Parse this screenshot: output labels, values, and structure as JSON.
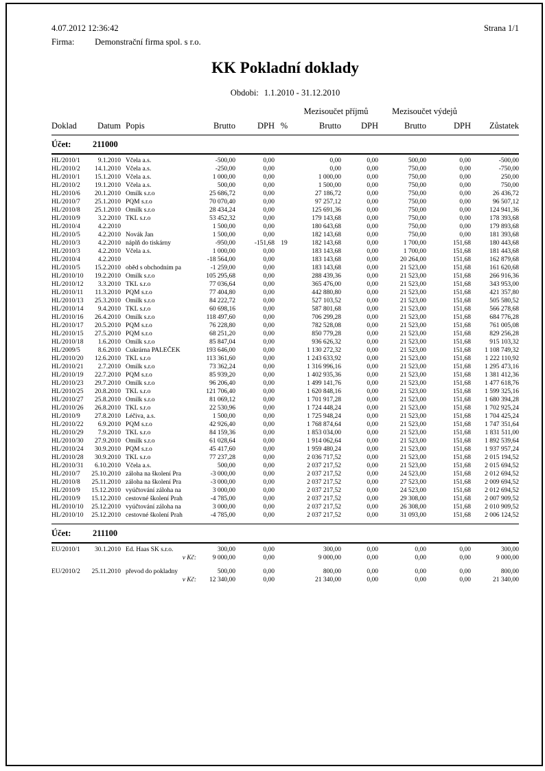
{
  "meta": {
    "datetime": "4.07.2012 12:36:42",
    "page": "Strana 1/1",
    "firma_label": "Firma:",
    "firma_value": "Demonstrační firma spol. s r.o."
  },
  "title": "KK Pokladní doklady",
  "period": {
    "label": "Obdobi:",
    "value": "1.1.2010 - 31.12.2010"
  },
  "table": {
    "group_headers": {
      "income": "Mezisoučet příjmů",
      "expense": "Mezisoučet výdejů"
    },
    "columns": [
      "Doklad",
      "Datum",
      "Popis",
      "Brutto",
      "DPH",
      "%",
      "Brutto",
      "DPH",
      "Brutto",
      "DPH",
      "Zůstatek"
    ],
    "sections": [
      {
        "ucet_label": "Účet:",
        "ucet": "211000",
        "rows": [
          {
            "t": "r",
            "c": [
              "HL/2010/1",
              "9.1.2010",
              "Včela a.s.",
              "-500,00",
              "0,00",
              "",
              "0,00",
              "0,00",
              "500,00",
              "0,00",
              "-500,00"
            ]
          },
          {
            "t": "r",
            "c": [
              "HL/2010/2",
              "14.1.2010",
              "Včela a.s.",
              "-250,00",
              "0,00",
              "",
              "0,00",
              "0,00",
              "750,00",
              "0,00",
              "-750,00"
            ]
          },
          {
            "t": "r",
            "c": [
              "HL/2010/1",
              "15.1.2010",
              "Včela a.s.",
              "1 000,00",
              "0,00",
              "",
              "1 000,00",
              "0,00",
              "750,00",
              "0,00",
              "250,00"
            ]
          },
          {
            "t": "r",
            "c": [
              "HL/2010/2",
              "19.1.2010",
              "Včela a.s.",
              "500,00",
              "0,00",
              "",
              "1 500,00",
              "0,00",
              "750,00",
              "0,00",
              "750,00"
            ]
          },
          {
            "t": "r",
            "c": [
              "HL/2010/6",
              "20.1.2010",
              "Omilk s.r.o",
              "25 686,72",
              "0,00",
              "",
              "27 186,72",
              "0,00",
              "750,00",
              "0,00",
              "26 436,72"
            ]
          },
          {
            "t": "r",
            "c": [
              "HL/2010/7",
              "25.1.2010",
              "PQM s.r.o",
              "70 070,40",
              "0,00",
              "",
              "97 257,12",
              "0,00",
              "750,00",
              "0,00",
              "96 507,12"
            ]
          },
          {
            "t": "r",
            "c": [
              "HL/2010/8",
              "25.1.2010",
              "Omilk s.r.o",
              "28 434,24",
              "0,00",
              "",
              "125 691,36",
              "0,00",
              "750,00",
              "0,00",
              "124 941,36"
            ]
          },
          {
            "t": "r",
            "c": [
              "HL/2010/9",
              "3.2.2010",
              "TKL s.r.o",
              "53 452,32",
              "0,00",
              "",
              "179 143,68",
              "0,00",
              "750,00",
              "0,00",
              "178 393,68"
            ]
          },
          {
            "t": "r",
            "c": [
              "HL/2010/4",
              "4.2.2010",
              "",
              "1 500,00",
              "0,00",
              "",
              "180 643,68",
              "0,00",
              "750,00",
              "0,00",
              "179 893,68"
            ]
          },
          {
            "t": "r",
            "c": [
              "HL/2010/5",
              "4.2.2010",
              "Novák Jan",
              "1 500,00",
              "0,00",
              "",
              "182 143,68",
              "0,00",
              "750,00",
              "0,00",
              "181 393,68"
            ]
          },
          {
            "t": "r",
            "c": [
              "HL/2010/3",
              "4.2.2010",
              "náplň do tiskárny",
              "-950,00",
              "-151,68",
              "19",
              "182 143,68",
              "0,00",
              "1 700,00",
              "151,68",
              "180 443,68"
            ]
          },
          {
            "t": "r",
            "c": [
              "HL/2010/3",
              "4.2.2010",
              "Včela a.s.",
              "1 000,00",
              "0,00",
              "",
              "183 143,68",
              "0,00",
              "1 700,00",
              "151,68",
              "181 443,68"
            ]
          },
          {
            "t": "r",
            "c": [
              "HL/2010/4",
              "4.2.2010",
              "",
              "-18 564,00",
              "0,00",
              "",
              "183 143,68",
              "0,00",
              "20 264,00",
              "151,68",
              "162 879,68"
            ]
          },
          {
            "t": "r",
            "c": [
              "HL/2010/5",
              "15.2.2010",
              "oběd s obchodním pa",
              "-1 259,00",
              "0,00",
              "",
              "183 143,68",
              "0,00",
              "21 523,00",
              "151,68",
              "161 620,68"
            ]
          },
          {
            "t": "r",
            "c": [
              "HL/2010/10",
              "19.2.2010",
              "Omilk s.r.o",
              "105 295,68",
              "0,00",
              "",
              "288 439,36",
              "0,00",
              "21 523,00",
              "151,68",
              "266 916,36"
            ]
          },
          {
            "t": "r",
            "c": [
              "HL/2010/12",
              "3.3.2010",
              "TKL s.r.o",
              "77 036,64",
              "0,00",
              "",
              "365 476,00",
              "0,00",
              "21 523,00",
              "151,68",
              "343 953,00"
            ]
          },
          {
            "t": "r",
            "c": [
              "HL/2010/11",
              "11.3.2010",
              "PQM s.r.o",
              "77 404,80",
              "0,00",
              "",
              "442 880,80",
              "0,00",
              "21 523,00",
              "151,68",
              "421 357,80"
            ]
          },
          {
            "t": "r",
            "c": [
              "HL/2010/13",
              "25.3.2010",
              "Omilk s.r.o",
              "84 222,72",
              "0,00",
              "",
              "527 103,52",
              "0,00",
              "21 523,00",
              "151,68",
              "505 580,52"
            ]
          },
          {
            "t": "r",
            "c": [
              "HL/2010/14",
              "9.4.2010",
              "TKL s.r.o",
              "60 698,16",
              "0,00",
              "",
              "587 801,68",
              "0,00",
              "21 523,00",
              "151,68",
              "566 278,68"
            ]
          },
          {
            "t": "r",
            "c": [
              "HL/2010/16",
              "26.4.2010",
              "Omilk s.r.o",
              "118 497,60",
              "0,00",
              "",
              "706 299,28",
              "0,00",
              "21 523,00",
              "151,68",
              "684 776,28"
            ]
          },
          {
            "t": "r",
            "c": [
              "HL/2010/17",
              "20.5.2010",
              "PQM s.r.o",
              "76 228,80",
              "0,00",
              "",
              "782 528,08",
              "0,00",
              "21 523,00",
              "151,68",
              "761 005,08"
            ]
          },
          {
            "t": "r",
            "c": [
              "HL/2010/15",
              "27.5.2010",
              "PQM s.r.o",
              "68 251,20",
              "0,00",
              "",
              "850 779,28",
              "0,00",
              "21 523,00",
              "151,68",
              "829 256,28"
            ]
          },
          {
            "t": "r",
            "c": [
              "HL/2010/18",
              "1.6.2010",
              "Omilk s.r.o",
              "85 847,04",
              "0,00",
              "",
              "936 626,32",
              "0,00",
              "21 523,00",
              "151,68",
              "915 103,32"
            ]
          },
          {
            "t": "r",
            "c": [
              "HL/2009/5",
              "8.6.2010",
              "Cukrárna PALEČEK",
              "193 646,00",
              "0,00",
              "",
              "1 130 272,32",
              "0,00",
              "21 523,00",
              "151,68",
              "1 108 749,32"
            ]
          },
          {
            "t": "r",
            "c": [
              "HL/2010/20",
              "12.6.2010",
              "TKL s.r.o",
              "113 361,60",
              "0,00",
              "",
              "1 243 633,92",
              "0,00",
              "21 523,00",
              "151,68",
              "1 222 110,92"
            ]
          },
          {
            "t": "r",
            "c": [
              "HL/2010/21",
              "2.7.2010",
              "Omilk s.r.o",
              "73 362,24",
              "0,00",
              "",
              "1 316 996,16",
              "0,00",
              "21 523,00",
              "151,68",
              "1 295 473,16"
            ]
          },
          {
            "t": "r",
            "c": [
              "HL/2010/19",
              "22.7.2010",
              "PQM s.r.o",
              "85 939,20",
              "0,00",
              "",
              "1 402 935,36",
              "0,00",
              "21 523,00",
              "151,68",
              "1 381 412,36"
            ]
          },
          {
            "t": "r",
            "c": [
              "HL/2010/23",
              "29.7.2010",
              "Omilk s.r.o",
              "96 206,40",
              "0,00",
              "",
              "1 499 141,76",
              "0,00",
              "21 523,00",
              "151,68",
              "1 477 618,76"
            ]
          },
          {
            "t": "r",
            "c": [
              "HL/2010/25",
              "20.8.2010",
              "TKL s.r.o",
              "121 706,40",
              "0,00",
              "",
              "1 620 848,16",
              "0,00",
              "21 523,00",
              "151,68",
              "1 599 325,16"
            ]
          },
          {
            "t": "r",
            "c": [
              "HL/2010/27",
              "25.8.2010",
              "Omilk s.r.o",
              "81 069,12",
              "0,00",
              "",
              "1 701 917,28",
              "0,00",
              "21 523,00",
              "151,68",
              "1 680 394,28"
            ]
          },
          {
            "t": "r",
            "c": [
              "HL/2010/26",
              "26.8.2010",
              "TKL s.r.o",
              "22 530,96",
              "0,00",
              "",
              "1 724 448,24",
              "0,00",
              "21 523,00",
              "151,68",
              "1 702 925,24"
            ]
          },
          {
            "t": "r",
            "c": [
              "HL/2010/9",
              "27.8.2010",
              "Léčiva, a.s.",
              "1 500,00",
              "0,00",
              "",
              "1 725 948,24",
              "0,00",
              "21 523,00",
              "151,68",
              "1 704 425,24"
            ]
          },
          {
            "t": "r",
            "c": [
              "HL/2010/22",
              "6.9.2010",
              "PQM s.r.o",
              "42 926,40",
              "0,00",
              "",
              "1 768 874,64",
              "0,00",
              "21 523,00",
              "151,68",
              "1 747 351,64"
            ]
          },
          {
            "t": "r",
            "c": [
              "HL/2010/29",
              "7.9.2010",
              "TKL s.r.o",
              "84 159,36",
              "0,00",
              "",
              "1 853 034,00",
              "0,00",
              "21 523,00",
              "151,68",
              "1 831 511,00"
            ]
          },
          {
            "t": "r",
            "c": [
              "HL/2010/30",
              "27.9.2010",
              "Omilk s.r.o",
              "61 028,64",
              "0,00",
              "",
              "1 914 062,64",
              "0,00",
              "21 523,00",
              "151,68",
              "1 892 539,64"
            ]
          },
          {
            "t": "r",
            "c": [
              "HL/2010/24",
              "30.9.2010",
              "PQM s.r.o",
              "45 417,60",
              "0,00",
              "",
              "1 959 480,24",
              "0,00",
              "21 523,00",
              "151,68",
              "1 937 957,24"
            ]
          },
          {
            "t": "r",
            "c": [
              "HL/2010/28",
              "30.9.2010",
              "TKL s.r.o",
              "77 237,28",
              "0,00",
              "",
              "2 036 717,52",
              "0,00",
              "21 523,00",
              "151,68",
              "2 015 194,52"
            ]
          },
          {
            "t": "r",
            "c": [
              "HL/2010/31",
              "6.10.2010",
              "Včela a.s.",
              "500,00",
              "0,00",
              "",
              "2 037 217,52",
              "0,00",
              "21 523,00",
              "151,68",
              "2 015 694,52"
            ]
          },
          {
            "t": "r",
            "c": [
              "HL/2010/7",
              "25.10.2010",
              "záloha na školení Pra",
              "-3 000,00",
              "0,00",
              "",
              "2 037 217,52",
              "0,00",
              "24 523,00",
              "151,68",
              "2 012 694,52"
            ]
          },
          {
            "t": "r",
            "c": [
              "HL/2010/8",
              "25.11.2010",
              "záloha na školení Pra",
              "-3 000,00",
              "0,00",
              "",
              "2 037 217,52",
              "0,00",
              "27 523,00",
              "151,68",
              "2 009 694,52"
            ]
          },
          {
            "t": "r",
            "c": [
              "HL/2010/9",
              "15.12.2010",
              "vyúčtování záloha na",
              "3 000,00",
              "0,00",
              "",
              "2 037 217,52",
              "0,00",
              "24 523,00",
              "151,68",
              "2 012 694,52"
            ]
          },
          {
            "t": "r",
            "c": [
              "HL/2010/9",
              "15.12.2010",
              "cestovné školení Prah",
              "-4 785,00",
              "0,00",
              "",
              "2 037 217,52",
              "0,00",
              "29 308,00",
              "151,68",
              "2 007 909,52"
            ]
          },
          {
            "t": "r",
            "c": [
              "HL/2010/10",
              "25.12.2010",
              "vyúčtování záloha na",
              "3 000,00",
              "0,00",
              "",
              "2 037 217,52",
              "0,00",
              "26 308,00",
              "151,68",
              "2 010 909,52"
            ]
          },
          {
            "t": "r",
            "c": [
              "HL/2010/10",
              "25.12.2010",
              "cestovné školení Prah",
              "-4 785,00",
              "0,00",
              "",
              "2 037 217,52",
              "0,00",
              "31 093,00",
              "151,68",
              "2 006 124,52"
            ]
          }
        ]
      },
      {
        "ucet_label": "Účet:",
        "ucet": "211100",
        "rows": [
          {
            "t": "r",
            "c": [
              "EU/2010/1",
              "30.1.2010",
              "Ed. Haas SK s.r.o.",
              "300,00",
              "0,00",
              "",
              "300,00",
              "0,00",
              "0,00",
              "0,00",
              "300,00"
            ]
          },
          {
            "t": "v",
            "c": [
              "",
              "",
              "v Kč:",
              "9 000,00",
              "0,00",
              "",
              "9 000,00",
              "0,00",
              "0,00",
              "0,00",
              "9 000,00"
            ]
          },
          {
            "t": "g"
          },
          {
            "t": "r",
            "c": [
              "EU/2010/2",
              "25.11.2010",
              "převod do pokladny",
              "500,00",
              "0,00",
              "",
              "800,00",
              "0,00",
              "0,00",
              "0,00",
              "800,00"
            ]
          },
          {
            "t": "v",
            "c": [
              "",
              "",
              "v Kč:",
              "12 340,00",
              "0,00",
              "",
              "21 340,00",
              "0,00",
              "0,00",
              "0,00",
              "21 340,00"
            ]
          }
        ]
      }
    ]
  }
}
